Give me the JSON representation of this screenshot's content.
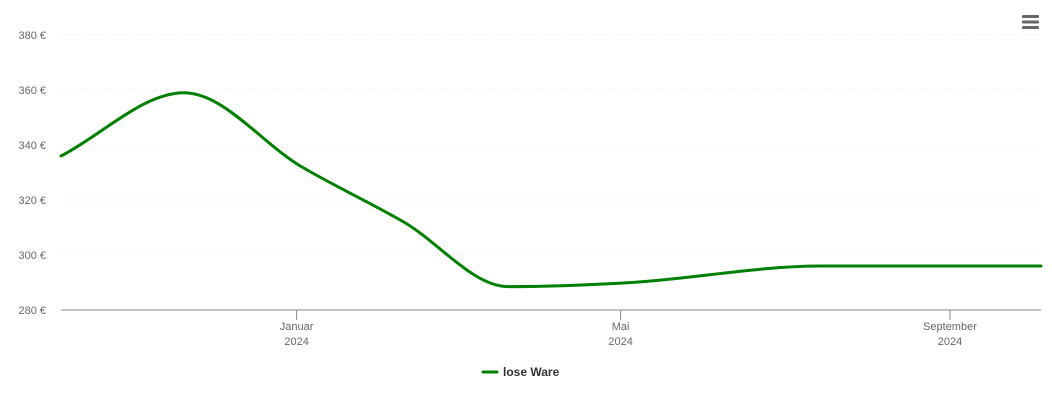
{
  "chart_data": {
    "type": "line",
    "y_ticks": [
      280,
      300,
      320,
      340,
      360,
      380
    ],
    "y_tick_suffix": " €",
    "ylim": [
      280,
      380
    ],
    "xlim": [
      "2023-10-05",
      "2024-10-05"
    ],
    "x_ticks": [
      {
        "month": "Januar",
        "year": "2024",
        "date": "2024-01-01"
      },
      {
        "month": "Mai",
        "year": "2024",
        "date": "2024-05-01"
      },
      {
        "month": "September",
        "year": "2024",
        "date": "2024-09-01"
      }
    ],
    "grid": true,
    "legend_position": "bottom-center",
    "series": [
      {
        "name": "lose Ware",
        "color": "#008000",
        "points": [
          {
            "x": "2023-10-05",
            "y": 336
          },
          {
            "x": "2023-11-20",
            "y": 359
          },
          {
            "x": "2024-01-03",
            "y": 332
          },
          {
            "x": "2024-02-10",
            "y": 312
          },
          {
            "x": "2024-03-20",
            "y": 288.5
          },
          {
            "x": "2024-05-05",
            "y": 290
          },
          {
            "x": "2024-07-15",
            "y": 296
          },
          {
            "x": "2024-10-05",
            "y": 296
          }
        ]
      }
    ]
  },
  "menu": {
    "icon": "hamburger-menu-icon"
  }
}
